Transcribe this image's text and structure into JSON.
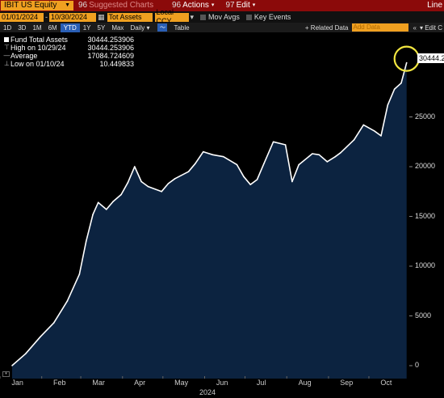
{
  "toolbar": {
    "security": "IBIT US Equity",
    "suggested_num": "96",
    "suggested": "Suggested Charts",
    "actions_num": "96",
    "actions": "Actions",
    "edit_num": "97",
    "edit": "Edit",
    "chart_type": "Line"
  },
  "range": {
    "start": "01/01/2024",
    "end": "10/30/2024",
    "field": "Tot Assets",
    "currency": "Local CCY",
    "mov_avgs": "Mov Avgs",
    "key_events": "Key Events"
  },
  "periods": {
    "items": [
      "1D",
      "3D",
      "1M",
      "6M",
      "YTD",
      "1Y",
      "5Y",
      "Max"
    ],
    "selected": "YTD",
    "frequency": "Daily",
    "table": "Table",
    "related_data": "+ Related Data",
    "add_data_placeholder": "Add Data",
    "edit_chart": "Edit C"
  },
  "legend": {
    "rows": [
      {
        "label": "Fund Total Assets",
        "value": "30444.253906"
      },
      {
        "label": "High on 10/29/24",
        "value": "30444.253906"
      },
      {
        "label": "Average",
        "value": "17084.724609"
      },
      {
        "label": "Low on 01/10/24",
        "value": "10.449833"
      }
    ]
  },
  "current_value_tag": "30444.2",
  "colors": {
    "header_bg": "#8b0a0a",
    "accent_orange": "#f0a020",
    "area_fill": "#0c2340",
    "line": "#ffffff",
    "highlight_circle": "#f2e640"
  },
  "chart_data": {
    "type": "area",
    "title": "",
    "series": [
      {
        "name": "Fund Total Assets"
      }
    ],
    "x": [
      "2024-01-10",
      "2024-01-20",
      "2024-01-31",
      "2024-02-10",
      "2024-02-20",
      "2024-02-29",
      "2024-03-05",
      "2024-03-10",
      "2024-03-14",
      "2024-03-20",
      "2024-03-25",
      "2024-03-31",
      "2024-04-05",
      "2024-04-10",
      "2024-04-15",
      "2024-04-20",
      "2024-04-30",
      "2024-05-05",
      "2024-05-10",
      "2024-05-20",
      "2024-05-25",
      "2024-05-31",
      "2024-06-07",
      "2024-06-15",
      "2024-06-25",
      "2024-06-30",
      "2024-07-05",
      "2024-07-10",
      "2024-07-15",
      "2024-07-22",
      "2024-07-31",
      "2024-08-05",
      "2024-08-10",
      "2024-08-20",
      "2024-08-25",
      "2024-08-31",
      "2024-09-06",
      "2024-09-10",
      "2024-09-20",
      "2024-09-27",
      "2024-10-05",
      "2024-10-10",
      "2024-10-15",
      "2024-10-20",
      "2024-10-25",
      "2024-10-29"
    ],
    "values": [
      10,
      1200,
      2900,
      4300,
      6500,
      9200,
      12500,
      15200,
      16400,
      15700,
      16500,
      17200,
      18400,
      20000,
      18500,
      18000,
      17500,
      18300,
      18800,
      19500,
      20300,
      21500,
      21200,
      21000,
      20200,
      19000,
      18200,
      18700,
      20300,
      22500,
      22200,
      18500,
      20200,
      21300,
      21200,
      20500,
      21000,
      21400,
      22700,
      24200,
      23600,
      23100,
      26200,
      27800,
      28400,
      30444
    ],
    "xlim": [
      "2024-01-01",
      "2024-10-31"
    ],
    "ylim": [
      -1300,
      33500
    ],
    "y_ticks": [
      0,
      5000,
      10000,
      15000,
      20000,
      25000
    ],
    "x_ticks": [
      "Jan",
      "Feb",
      "Mar",
      "Apr",
      "May",
      "Jun",
      "Jul",
      "Aug",
      "Sep",
      "Oct"
    ],
    "x_year": "2024",
    "legend_position": "top-left",
    "grid": false
  }
}
